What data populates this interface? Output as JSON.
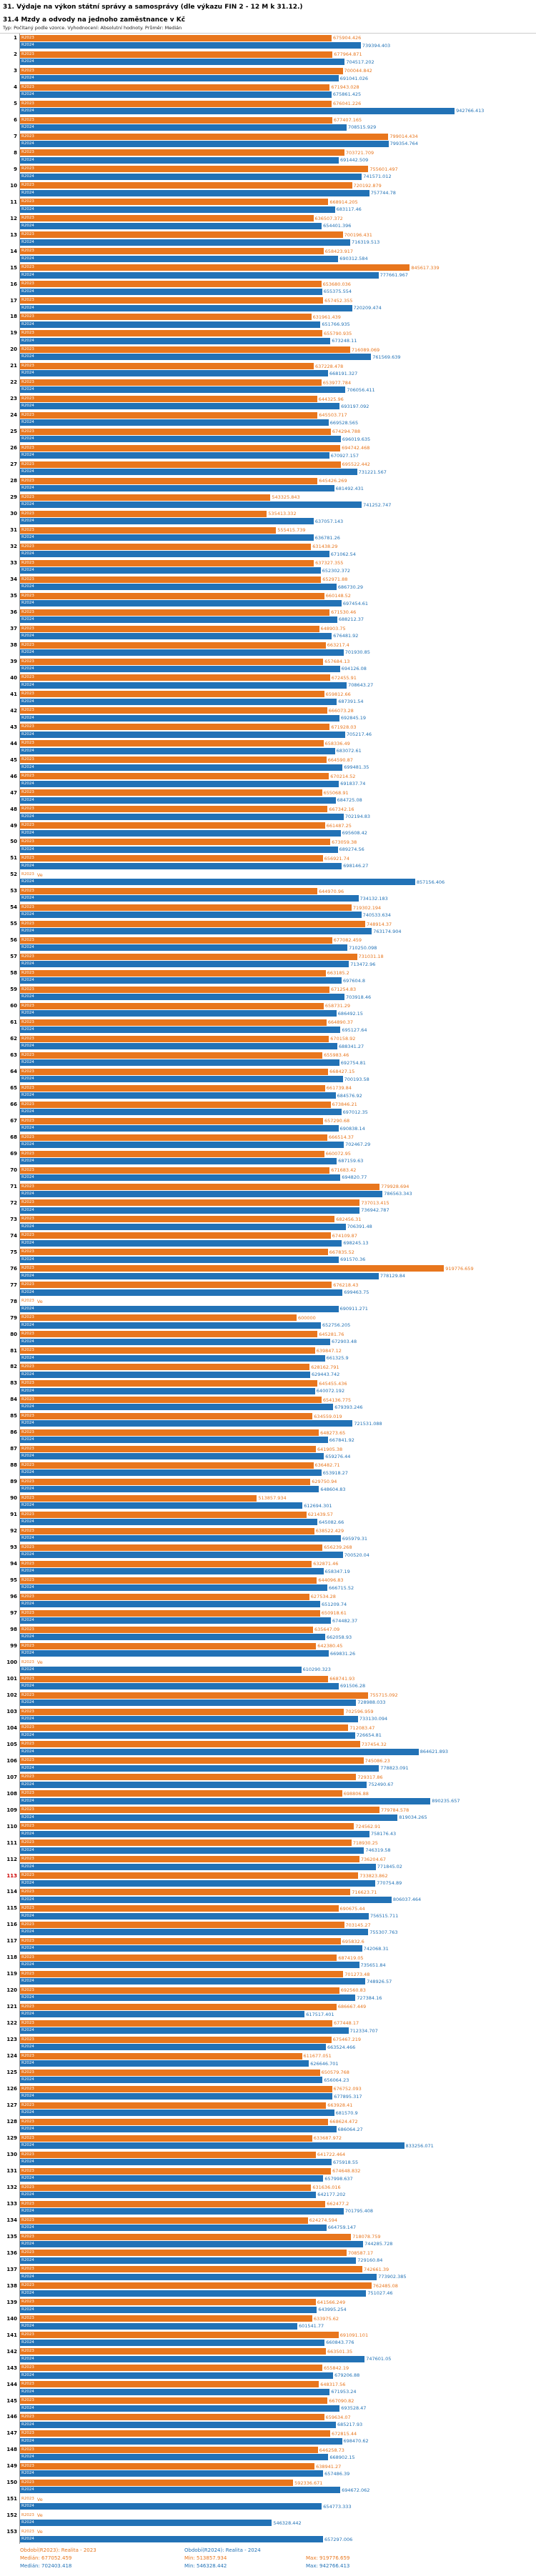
{
  "header": {
    "title": "31. Výdaje na výkon státní správy a samosprávy (dle výkazu FIN 2 - 12 M k 31.12.)",
    "subtitle": "31.4 Mzdy a odvody na jednoho zaměstnance v Kč",
    "meta": "Typ: Počítaný podle vzorce. Vyhodnocení: Absolutní hodnoty. Průměr: Medián"
  },
  "footer": {
    "periods": [
      "Období(R2023): Realita - 2023",
      "Období(R2024): Realita - 2024"
    ],
    "stats_r2023": [
      "Medián: 677052.459",
      "Min: 513857.934",
      "Max: 919776.659"
    ],
    "stats_r2024": [
      "Medián: 702403.418",
      "Min: 546328.442",
      "Max: 942766.413"
    ]
  },
  "chart_data": {
    "type": "bar",
    "orientation": "horizontal",
    "title": "31.4 Mzdy a odvody na jednoho zaměstnance v Kč",
    "xlabel": "Kč",
    "ylabel": "pořadí obce",
    "xlim": [
      0,
      1000000
    ],
    "grid": false,
    "legend_position": "bottom",
    "no_data_label": "Ve",
    "highlight_rows": [
      113
    ],
    "series": [
      {
        "name": "R2023",
        "color": "#e8761d",
        "period": "Realita - 2023"
      },
      {
        "name": "R2024",
        "color": "#2272b6",
        "period": "Realita - 2024"
      }
    ],
    "row_columns": [
      "row",
      "R2023",
      "R2024"
    ],
    "rows": [
      [
        1,
        675904.426,
        739394.403
      ],
      [
        2,
        677964.871,
        704517.202
      ],
      [
        3,
        700044.842,
        691041.026
      ],
      [
        4,
        671943.028,
        675861.425
      ],
      [
        5,
        676041.226,
        942766.413
      ],
      [
        6,
        677407.165,
        708515.929
      ],
      [
        7,
        799014.434,
        799354.764
      ],
      [
        8,
        703721.709,
        691442.509
      ],
      [
        9,
        755601.497,
        741571.012
      ],
      [
        10,
        720192.879,
        757744.78
      ],
      [
        11,
        668914.205,
        683117.46
      ],
      [
        12,
        636507.372,
        654401.396
      ],
      [
        13,
        700196.431,
        716319.513
      ],
      [
        14,
        658423.917,
        690312.584
      ],
      [
        15,
        845617.339,
        777661.967
      ],
      [
        16,
        653680.036,
        655375.554
      ],
      [
        17,
        657452.355,
        720209.474
      ],
      [
        18,
        631961.439,
        651766.935
      ],
      [
        19,
        655790.935,
        673248.11
      ],
      [
        20,
        716089.069,
        761569.639
      ],
      [
        21,
        637228.478,
        668191.327
      ],
      [
        22,
        653977.784,
        706056.411
      ],
      [
        23,
        644325.96,
        693197.092
      ],
      [
        24,
        645503.717,
        669528.565
      ],
      [
        25,
        674294.788,
        696019.635
      ],
      [
        26,
        694742.468,
        670927.157
      ],
      [
        27,
        695522.442,
        731221.567
      ],
      [
        28,
        645426.269,
        681492.431
      ],
      [
        29,
        543325.843,
        741252.747
      ],
      [
        30,
        535413.332,
        637057.143
      ],
      [
        31,
        555415.739,
        636781.26
      ],
      [
        32,
        631438.29,
        671062.54
      ],
      [
        33,
        637327.355,
        652302.372
      ],
      [
        34,
        652971.88,
        686730.29
      ],
      [
        35,
        660148.52,
        697454.61
      ],
      [
        36,
        671530.46,
        688212.37
      ],
      [
        37,
        648903.75,
        676481.92
      ],
      [
        38,
        663217.4,
        701930.85
      ],
      [
        39,
        657684.13,
        694126.08
      ],
      [
        40,
        672455.91,
        708643.27
      ],
      [
        41,
        659812.66,
        687391.54
      ],
      [
        42,
        666073.28,
        692845.19
      ],
      [
        43,
        671928.03,
        705217.46
      ],
      [
        44,
        658336.49,
        683072.61
      ],
      [
        45,
        664590.87,
        699481.35
      ],
      [
        46,
        670214.52,
        691837.74
      ],
      [
        47,
        655068.91,
        684725.08
      ],
      [
        48,
        667342.16,
        702194.83
      ],
      [
        49,
        661487.25,
        695608.42
      ],
      [
        50,
        673059.38,
        689274.56
      ],
      [
        51,
        656921.74,
        698146.27
      ],
      [
        52,
        null,
        857156.406
      ],
      [
        53,
        644970.96,
        734132.183
      ],
      [
        54,
        719302.194,
        740533.634
      ],
      [
        55,
        748914.37,
        763174.904
      ],
      [
        56,
        677082.459,
        710250.098
      ],
      [
        57,
        731031.18,
        713472.96
      ],
      [
        58,
        663185.2,
        697604.8
      ],
      [
        59,
        671254.83,
        703918.46
      ],
      [
        60,
        658731.29,
        686492.15
      ],
      [
        61,
        664890.37,
        695127.64
      ],
      [
        62,
        670158.92,
        688341.27
      ],
      [
        63,
        655983.46,
        692754.81
      ],
      [
        64,
        668427.15,
        700193.58
      ],
      [
        65,
        661739.84,
        684576.92
      ],
      [
        66,
        673846.21,
        697012.35
      ],
      [
        67,
        657290.68,
        690838.14
      ],
      [
        68,
        666514.37,
        702467.29
      ],
      [
        69,
        660072.95,
        687159.63
      ],
      [
        70,
        671683.42,
        694820.77
      ],
      [
        71,
        779928.694,
        786563.343
      ],
      [
        72,
        737013.415,
        736942.787
      ],
      [
        73,
        682456.31,
        706391.48
      ],
      [
        74,
        674109.87,
        698245.13
      ],
      [
        75,
        667835.52,
        691570.36
      ],
      [
        76,
        919776.659,
        778129.84
      ],
      [
        77,
        676218.43,
        699463.75
      ],
      [
        78,
        null,
        690911.271
      ],
      [
        79,
        600000,
        652756.205
      ],
      [
        80,
        645281.76,
        672903.48
      ],
      [
        81,
        639847.12,
        661325.9
      ],
      [
        82,
        628162.791,
        629443.742
      ],
      [
        83,
        645455.436,
        640072.192
      ],
      [
        84,
        654136.775,
        679393.246
      ],
      [
        85,
        634559.019,
        721531.088
      ],
      [
        86,
        648273.65,
        667841.92
      ],
      [
        87,
        641905.38,
        659276.44
      ],
      [
        88,
        636482.71,
        653918.27
      ],
      [
        89,
        629750.94,
        648604.83
      ],
      [
        90,
        513857.934,
        612694.301
      ],
      [
        91,
        621439.57,
        645082.66
      ],
      [
        92,
        638522.429,
        695979.31
      ],
      [
        93,
        656239.268,
        700520.04
      ],
      [
        94,
        632871.46,
        658347.19
      ],
      [
        95,
        644096.83,
        666715.52
      ],
      [
        96,
        627534.28,
        651209.74
      ],
      [
        97,
        650918.61,
        674482.37
      ],
      [
        98,
        635647.09,
        662058.93
      ],
      [
        99,
        642380.45,
        669831.26
      ],
      [
        100,
        null,
        610290.323
      ],
      [
        101,
        668741.93,
        691506.28
      ],
      [
        102,
        755715.092,
        728988.033
      ],
      [
        103,
        702596.959,
        733130.094
      ],
      [
        104,
        712083.47,
        726654.81
      ],
      [
        105,
        737454.32,
        864621.893
      ],
      [
        106,
        745086.23,
        778823.091
      ],
      [
        107,
        729317.86,
        752490.67
      ],
      [
        108,
        698806.88,
        890235.657
      ],
      [
        109,
        779784.578,
        819034.265
      ],
      [
        110,
        724562.91,
        758176.43
      ],
      [
        111,
        718930.25,
        746319.58
      ],
      [
        112,
        736204.67,
        771845.02
      ],
      [
        113,
        733823.862,
        770754.89
      ],
      [
        114,
        716623.71,
        806037.464
      ],
      [
        115,
        690675.44,
        756515.711
      ],
      [
        116,
        703145.27,
        755307.763
      ],
      [
        117,
        695832.6,
        742068.31
      ],
      [
        118,
        687419.05,
        735651.84
      ],
      [
        119,
        701273.48,
        748926.57
      ],
      [
        120,
        692560.83,
        727384.16
      ],
      [
        121,
        686667.449,
        617517.401
      ],
      [
        122,
        677448.17,
        712334.707
      ],
      [
        123,
        675467.219,
        663524.466
      ],
      [
        124,
        611677.051,
        626646.701
      ],
      [
        125,
        650579.768,
        656064.23
      ],
      [
        126,
        676752.093,
        677895.317
      ],
      [
        127,
        663928.41,
        681570.9
      ],
      [
        128,
        668624.472,
        686064.27
      ],
      [
        129,
        633687.972,
        833256.071
      ],
      [
        130,
        641722.464,
        675918.55
      ],
      [
        131,
        674648.832,
        657998.637
      ],
      [
        132,
        631636.016,
        642177.202
      ],
      [
        133,
        662477.2,
        701795.408
      ],
      [
        134,
        624274.594,
        664759.147
      ],
      [
        135,
        718078.759,
        744285.728
      ],
      [
        136,
        708587.17,
        729160.84
      ],
      [
        137,
        742661.39,
        773902.385
      ],
      [
        138,
        762485.08,
        751027.46
      ],
      [
        139,
        641566.249,
        643995.254
      ],
      [
        140,
        633975.62,
        601541.77
      ],
      [
        141,
        691091.101,
        660843.776
      ],
      [
        142,
        663501.35,
        747601.05
      ],
      [
        143,
        655842.19,
        679206.88
      ],
      [
        144,
        648317.56,
        671953.24
      ],
      [
        145,
        667090.82,
        693528.47
      ],
      [
        146,
        659634.07,
        685217.93
      ],
      [
        147,
        672815.44,
        698470.62
      ],
      [
        148,
        646258.73,
        668902.15
      ],
      [
        149,
        638941.27,
        657486.39
      ],
      [
        150,
        592336.671,
        694672.062
      ],
      [
        151,
        null,
        654773.333
      ],
      [
        152,
        null,
        546328.442
      ],
      [
        153,
        null,
        657297.006
      ]
    ]
  }
}
